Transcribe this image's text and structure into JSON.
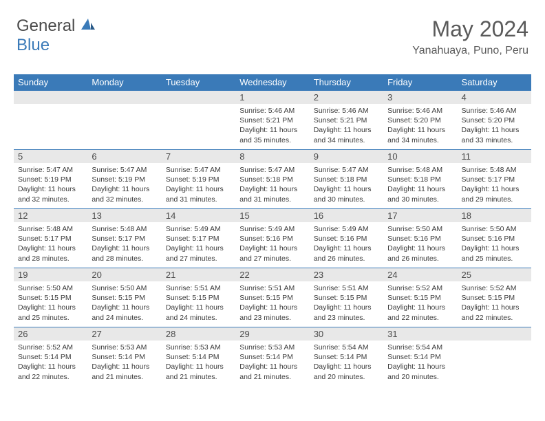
{
  "logo": {
    "general": "General",
    "blue": "Blue"
  },
  "title": "May 2024",
  "location": "Yanahuaya, Puno, Peru",
  "colors": {
    "header_bg": "#3a7ab8",
    "header_fg": "#ffffff",
    "daynum_bg": "#e8e8e8",
    "text": "#3a3a3a",
    "title_color": "#5a5a5a",
    "logo_blue": "#3a7ab8",
    "logo_gray": "#4a4a4a"
  },
  "weekdays": [
    "Sunday",
    "Monday",
    "Tuesday",
    "Wednesday",
    "Thursday",
    "Friday",
    "Saturday"
  ],
  "calendar": {
    "first_weekday_index": 3,
    "days": [
      {
        "n": 1,
        "sunrise": "5:46 AM",
        "sunset": "5:21 PM",
        "daylight": "11 hours and 35 minutes."
      },
      {
        "n": 2,
        "sunrise": "5:46 AM",
        "sunset": "5:21 PM",
        "daylight": "11 hours and 34 minutes."
      },
      {
        "n": 3,
        "sunrise": "5:46 AM",
        "sunset": "5:20 PM",
        "daylight": "11 hours and 34 minutes."
      },
      {
        "n": 4,
        "sunrise": "5:46 AM",
        "sunset": "5:20 PM",
        "daylight": "11 hours and 33 minutes."
      },
      {
        "n": 5,
        "sunrise": "5:47 AM",
        "sunset": "5:19 PM",
        "daylight": "11 hours and 32 minutes."
      },
      {
        "n": 6,
        "sunrise": "5:47 AM",
        "sunset": "5:19 PM",
        "daylight": "11 hours and 32 minutes."
      },
      {
        "n": 7,
        "sunrise": "5:47 AM",
        "sunset": "5:19 PM",
        "daylight": "11 hours and 31 minutes."
      },
      {
        "n": 8,
        "sunrise": "5:47 AM",
        "sunset": "5:18 PM",
        "daylight": "11 hours and 31 minutes."
      },
      {
        "n": 9,
        "sunrise": "5:47 AM",
        "sunset": "5:18 PM",
        "daylight": "11 hours and 30 minutes."
      },
      {
        "n": 10,
        "sunrise": "5:48 AM",
        "sunset": "5:18 PM",
        "daylight": "11 hours and 30 minutes."
      },
      {
        "n": 11,
        "sunrise": "5:48 AM",
        "sunset": "5:17 PM",
        "daylight": "11 hours and 29 minutes."
      },
      {
        "n": 12,
        "sunrise": "5:48 AM",
        "sunset": "5:17 PM",
        "daylight": "11 hours and 28 minutes."
      },
      {
        "n": 13,
        "sunrise": "5:48 AM",
        "sunset": "5:17 PM",
        "daylight": "11 hours and 28 minutes."
      },
      {
        "n": 14,
        "sunrise": "5:49 AM",
        "sunset": "5:17 PM",
        "daylight": "11 hours and 27 minutes."
      },
      {
        "n": 15,
        "sunrise": "5:49 AM",
        "sunset": "5:16 PM",
        "daylight": "11 hours and 27 minutes."
      },
      {
        "n": 16,
        "sunrise": "5:49 AM",
        "sunset": "5:16 PM",
        "daylight": "11 hours and 26 minutes."
      },
      {
        "n": 17,
        "sunrise": "5:50 AM",
        "sunset": "5:16 PM",
        "daylight": "11 hours and 26 minutes."
      },
      {
        "n": 18,
        "sunrise": "5:50 AM",
        "sunset": "5:16 PM",
        "daylight": "11 hours and 25 minutes."
      },
      {
        "n": 19,
        "sunrise": "5:50 AM",
        "sunset": "5:15 PM",
        "daylight": "11 hours and 25 minutes."
      },
      {
        "n": 20,
        "sunrise": "5:50 AM",
        "sunset": "5:15 PM",
        "daylight": "11 hours and 24 minutes."
      },
      {
        "n": 21,
        "sunrise": "5:51 AM",
        "sunset": "5:15 PM",
        "daylight": "11 hours and 24 minutes."
      },
      {
        "n": 22,
        "sunrise": "5:51 AM",
        "sunset": "5:15 PM",
        "daylight": "11 hours and 23 minutes."
      },
      {
        "n": 23,
        "sunrise": "5:51 AM",
        "sunset": "5:15 PM",
        "daylight": "11 hours and 23 minutes."
      },
      {
        "n": 24,
        "sunrise": "5:52 AM",
        "sunset": "5:15 PM",
        "daylight": "11 hours and 22 minutes."
      },
      {
        "n": 25,
        "sunrise": "5:52 AM",
        "sunset": "5:15 PM",
        "daylight": "11 hours and 22 minutes."
      },
      {
        "n": 26,
        "sunrise": "5:52 AM",
        "sunset": "5:14 PM",
        "daylight": "11 hours and 22 minutes."
      },
      {
        "n": 27,
        "sunrise": "5:53 AM",
        "sunset": "5:14 PM",
        "daylight": "11 hours and 21 minutes."
      },
      {
        "n": 28,
        "sunrise": "5:53 AM",
        "sunset": "5:14 PM",
        "daylight": "11 hours and 21 minutes."
      },
      {
        "n": 29,
        "sunrise": "5:53 AM",
        "sunset": "5:14 PM",
        "daylight": "11 hours and 21 minutes."
      },
      {
        "n": 30,
        "sunrise": "5:54 AM",
        "sunset": "5:14 PM",
        "daylight": "11 hours and 20 minutes."
      },
      {
        "n": 31,
        "sunrise": "5:54 AM",
        "sunset": "5:14 PM",
        "daylight": "11 hours and 20 minutes."
      }
    ]
  },
  "labels": {
    "sunrise": "Sunrise:",
    "sunset": "Sunset:",
    "daylight": "Daylight:"
  }
}
